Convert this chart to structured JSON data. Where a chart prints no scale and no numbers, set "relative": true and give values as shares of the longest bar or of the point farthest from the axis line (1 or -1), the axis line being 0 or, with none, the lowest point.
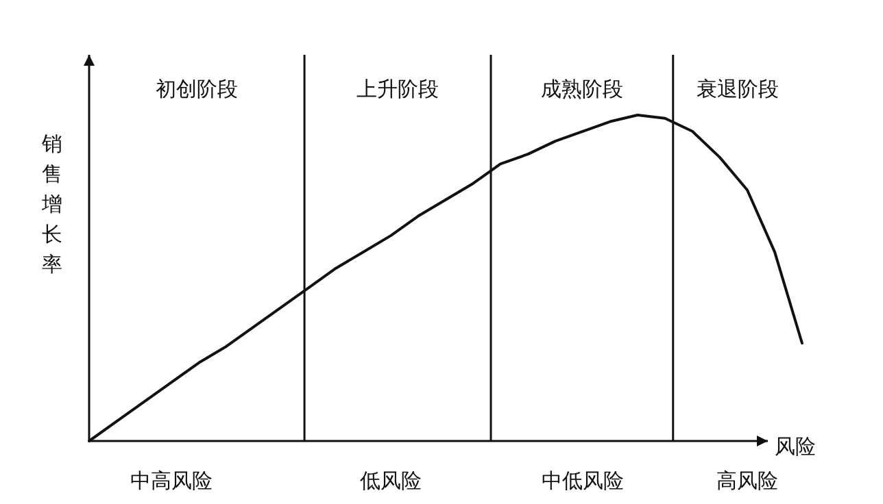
{
  "chart_data": {
    "type": "line",
    "relative": true,
    "xlabel": "风险",
    "ylabel": "销售增长率",
    "marker": "none",
    "line_style": "solid",
    "categories": [
      null,
      null,
      null,
      "中高风险",
      null,
      null,
      null,
      null,
      null,
      null,
      null,
      "低风险",
      null,
      null,
      null,
      null,
      null,
      null,
      "中低风险",
      null,
      null,
      null,
      null,
      null,
      "高风险",
      null,
      null
    ],
    "series": [
      {
        "color": "#111111",
        "values": [
          0,
          0.06,
          0.12,
          0.18,
          0.24,
          0.29,
          0.35,
          0.41,
          0.47,
          0.53,
          0.58,
          0.63,
          0.69,
          0.74,
          0.79,
          0.85,
          0.88,
          0.92,
          0.95,
          0.98,
          1.0,
          0.99,
          0.95,
          0.87,
          0.77,
          0.58,
          0.3
        ]
      }
    ],
    "annotations": [
      "初创阶段",
      "上升阶段",
      "成熟阶段",
      "衰退阶段"
    ]
  }
}
